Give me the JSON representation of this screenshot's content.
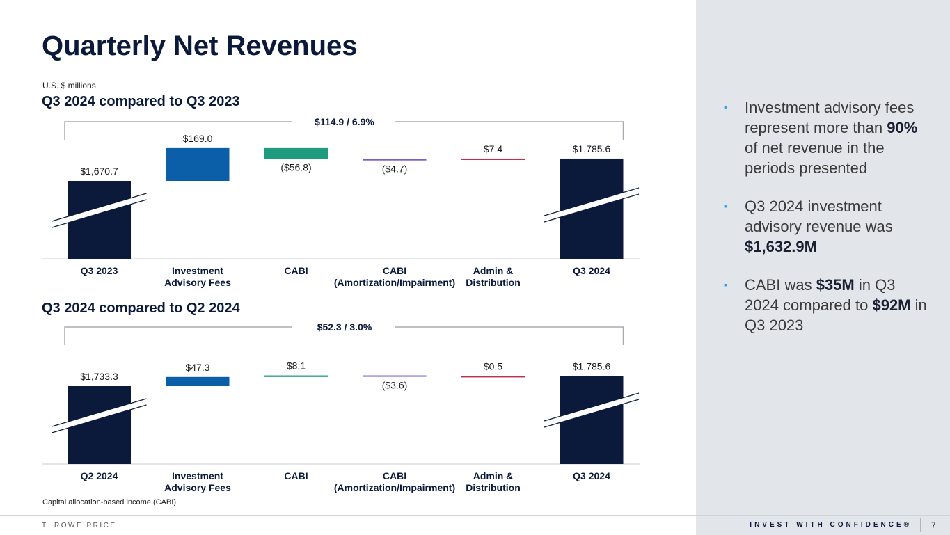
{
  "title": "Quarterly Net Revenues",
  "units": "U.S. $ millions",
  "footnote": "Capital allocation-based income (CABI)",
  "bullets": [
    {
      "parts": [
        {
          "t": "Investment advisory fees represent more than "
        },
        {
          "t": "90%",
          "b": true
        },
        {
          "t": " of net revenue in the periods presented"
        }
      ]
    },
    {
      "parts": [
        {
          "t": "Q3 2024 investment advisory revenue was "
        },
        {
          "t": "$1,632.9M",
          "b": true
        }
      ]
    },
    {
      "parts": [
        {
          "t": "CABI was "
        },
        {
          "t": "$35M",
          "b": true
        },
        {
          "t": " in Q3 2024 compared to "
        },
        {
          "t": "$92M",
          "b": true
        },
        {
          "t": " in Q3 2023"
        }
      ]
    }
  ],
  "bullet_marker": "▪",
  "footer": {
    "brand": "T. ROWE PRICE",
    "tagline": "INVEST WITH CONFIDENCE®",
    "page": "7"
  },
  "colors": {
    "total": "#0b1a3a",
    "investment_advisory_fees": "#0a5fa8",
    "cabi": "#1e9b7c",
    "cabi_amortization": "#7b5bd0",
    "admin_distribution": "#c0304e",
    "bullet_marker": "#29a8e0",
    "right_panel": "#e2e6ea"
  },
  "chart_data": [
    {
      "type": "bar",
      "subtype": "waterfall",
      "title": "Q3 2024 compared to Q3 2023",
      "bracket_label": "$114.9 / 6.9%",
      "categories": [
        "Q3 2023",
        "Investment\nAdvisory Fees",
        "CABI",
        "CABI\n(Amortization/Impairment)",
        "Admin &\nDistribution",
        "Q3 2024"
      ],
      "values": [
        1670.7,
        169.0,
        -56.8,
        -4.7,
        7.4,
        1785.6
      ],
      "labels": [
        "$1,670.7",
        "$169.0",
        "($56.8)",
        "($4.7)",
        "$7.4",
        "$1,785.6"
      ],
      "bar_kinds": [
        "total",
        "delta",
        "delta",
        "delta",
        "delta",
        "total"
      ],
      "axis_break": true
    },
    {
      "type": "bar",
      "subtype": "waterfall",
      "title": "Q3 2024 compared to Q2 2024",
      "bracket_label": "$52.3 / 3.0%",
      "categories": [
        "Q2 2024",
        "Investment\nAdvisory Fees",
        "CABI",
        "CABI\n(Amortization/Impairment)",
        "Admin &\nDistribution",
        "Q3 2024"
      ],
      "values": [
        1733.3,
        47.3,
        8.1,
        -3.6,
        0.5,
        1785.6
      ],
      "labels": [
        "$1,733.3",
        "$47.3",
        "$8.1",
        "($3.6)",
        "$0.5",
        "$1,785.6"
      ],
      "bar_kinds": [
        "total",
        "delta",
        "delta",
        "delta",
        "delta",
        "total"
      ],
      "axis_break": true
    }
  ]
}
